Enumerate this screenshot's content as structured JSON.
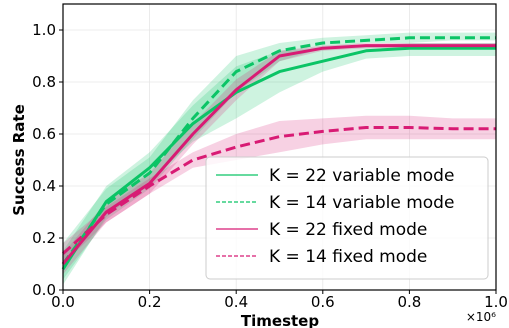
{
  "chart_data": {
    "type": "line",
    "xlabel": "Timestep",
    "ylabel": "Success Rate",
    "x_multiplier_label": "×10⁶",
    "xlim": [
      0.0,
      1.0
    ],
    "ylim": [
      0.0,
      1.1
    ],
    "xticks": [
      "0.0",
      "0.2",
      "0.4",
      "0.6",
      "0.8",
      "1.0"
    ],
    "yticks": [
      "0.0",
      "0.2",
      "0.4",
      "0.6",
      "0.8",
      "1.0"
    ],
    "grid": true,
    "legend_position": "lower-right",
    "series": [
      {
        "name": "K = 22 variable mode",
        "color": "#0bc466",
        "style": "solid",
        "x": [
          0.0,
          0.1,
          0.2,
          0.3,
          0.4,
          0.5,
          0.6,
          0.7,
          0.8,
          0.9,
          1.0
        ],
        "y": [
          0.08,
          0.34,
          0.47,
          0.64,
          0.76,
          0.84,
          0.88,
          0.92,
          0.93,
          0.93,
          0.93
        ],
        "lower": [
          0.02,
          0.28,
          0.42,
          0.57,
          0.66,
          0.76,
          0.84,
          0.89,
          0.9,
          0.9,
          0.9
        ],
        "upper": [
          0.15,
          0.4,
          0.53,
          0.71,
          0.86,
          0.92,
          0.93,
          0.94,
          0.95,
          0.95,
          0.95
        ]
      },
      {
        "name": "K = 14 variable mode",
        "color": "#0bc466",
        "style": "dashed",
        "x": [
          0.0,
          0.1,
          0.2,
          0.3,
          0.4,
          0.5,
          0.6,
          0.7,
          0.8,
          0.9,
          1.0
        ],
        "y": [
          0.1,
          0.33,
          0.45,
          0.66,
          0.84,
          0.92,
          0.95,
          0.96,
          0.97,
          0.97,
          0.97
        ],
        "lower": [
          0.04,
          0.27,
          0.39,
          0.58,
          0.76,
          0.88,
          0.93,
          0.95,
          0.95,
          0.96,
          0.96
        ],
        "upper": [
          0.18,
          0.39,
          0.51,
          0.73,
          0.9,
          0.95,
          0.97,
          0.98,
          0.99,
          0.99,
          0.99
        ]
      },
      {
        "name": "K = 22 fixed mode",
        "color": "#d81b74",
        "style": "solid",
        "x": [
          0.0,
          0.1,
          0.2,
          0.3,
          0.4,
          0.5,
          0.6,
          0.7,
          0.8,
          0.9,
          1.0
        ],
        "y": [
          0.1,
          0.3,
          0.41,
          0.6,
          0.77,
          0.9,
          0.93,
          0.94,
          0.94,
          0.94,
          0.94
        ],
        "lower": [
          0.06,
          0.26,
          0.37,
          0.56,
          0.73,
          0.88,
          0.92,
          0.93,
          0.93,
          0.93,
          0.93
        ],
        "upper": [
          0.14,
          0.34,
          0.45,
          0.64,
          0.81,
          0.92,
          0.94,
          0.95,
          0.95,
          0.95,
          0.95
        ]
      },
      {
        "name": "K = 14 fixed mode",
        "color": "#d81b74",
        "style": "dashed",
        "x": [
          0.0,
          0.1,
          0.2,
          0.3,
          0.4,
          0.5,
          0.6,
          0.7,
          0.8,
          0.9,
          1.0
        ],
        "y": [
          0.14,
          0.29,
          0.4,
          0.5,
          0.55,
          0.59,
          0.61,
          0.625,
          0.625,
          0.62,
          0.62
        ],
        "lower": [
          0.1,
          0.26,
          0.37,
          0.47,
          0.5,
          0.53,
          0.56,
          0.58,
          0.58,
          0.58,
          0.58
        ],
        "upper": [
          0.18,
          0.32,
          0.43,
          0.53,
          0.6,
          0.65,
          0.66,
          0.67,
          0.67,
          0.66,
          0.66
        ]
      }
    ]
  }
}
